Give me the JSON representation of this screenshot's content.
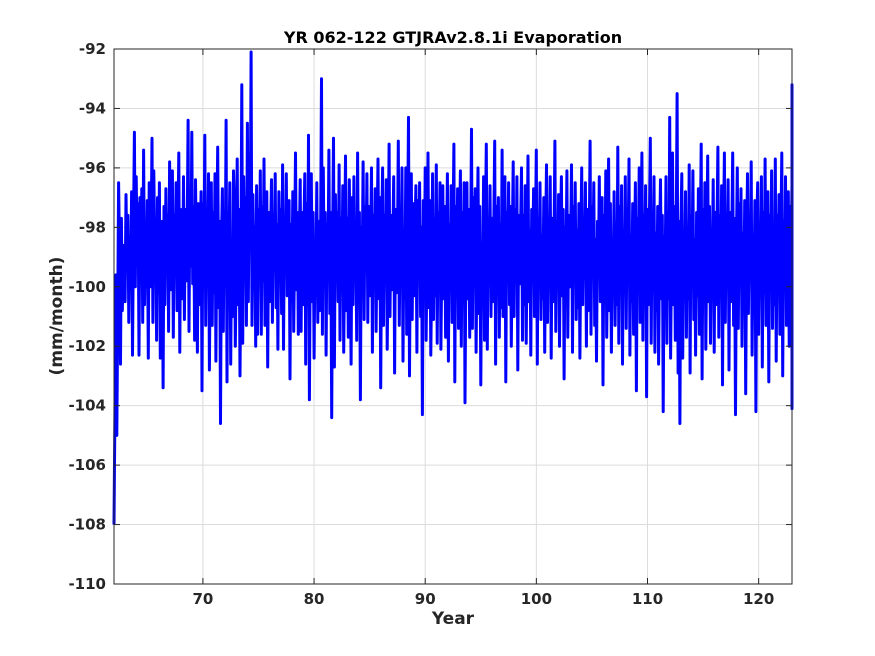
{
  "chart_data": {
    "type": "line",
    "title": "YR 062-122 GTJRAv2.8.1i Evaporation",
    "xlabel": "Year",
    "ylabel": "(mm/month)",
    "xlim": [
      62,
      123
    ],
    "ylim": [
      -110,
      -92
    ],
    "xticks": [
      70,
      80,
      90,
      100,
      110,
      120
    ],
    "xtick_labels": [
      "70",
      "80",
      "90",
      "100",
      "110",
      "120"
    ],
    "yticks": [
      -110,
      -108,
      -106,
      -104,
      -102,
      -100,
      -98,
      -96,
      -94,
      -92
    ],
    "ytick_labels": [
      "-110",
      "-108",
      "-106",
      "-104",
      "-102",
      "-100",
      "-98",
      "-96",
      "-94",
      "-92"
    ],
    "grid": true,
    "series": [
      {
        "color": "#0000ff",
        "x_start": 62.0,
        "x_step": 0.08333,
        "values": [
          -108.0,
          -104.3,
          -99.6,
          -105.0,
          -101.0,
          -96.5,
          -99.0,
          -102.6,
          -97.7,
          -100.8,
          -99.4,
          -98.6,
          -100.5,
          -96.9,
          -99.4,
          -97.6,
          -101.2,
          -98.3,
          -99.7,
          -96.8,
          -102.3,
          -98.0,
          -94.8,
          -100.0,
          -96.3,
          -99.0,
          -97.2,
          -102.3,
          -97.0,
          -99.6,
          -96.7,
          -101.2,
          -95.4,
          -100.6,
          -98.2,
          -99.7,
          -97.1,
          -102.4,
          -96.5,
          -100.0,
          -98.8,
          -95.0,
          -101.2,
          -96.1,
          -99.0,
          -98.0,
          -101.8,
          -97.0,
          -100.2,
          -96.5,
          -102.4,
          -99.0,
          -97.8,
          -103.4,
          -97.3,
          -100.6,
          -96.7,
          -99.2,
          -97.6,
          -101.5,
          -95.8,
          -100.1,
          -98.5,
          -96.1,
          -101.7,
          -97.6,
          -99.4,
          -96.5,
          -100.8,
          -98.1,
          -95.5,
          -102.2,
          -97.4,
          -99.5,
          -100.4,
          -96.3,
          -101.1,
          -97.4,
          -99.8,
          -98.0,
          -94.4,
          -101.5,
          -96.9,
          -99.3,
          -94.8,
          -99.9,
          -97.3,
          -101.8,
          -96.4,
          -99.0,
          -102.2,
          -97.2,
          -100.6,
          -98.8,
          -96.8,
          -103.5,
          -97.2,
          -100.0,
          -94.9,
          -101.3,
          -97.5,
          -99.6,
          -96.2,
          -102.8,
          -98.8,
          -96.5,
          -101.3,
          -97.5,
          -100.2,
          -96.2,
          -102.5,
          -98.1,
          -95.3,
          -100.7,
          -97.8,
          -104.6,
          -98.5,
          -96.7,
          -101.5,
          -97.5,
          -100.0,
          -94.4,
          -103.2,
          -97.5,
          -99.4,
          -96.5,
          -102.6,
          -98.5,
          -101.0,
          -96.1,
          -97.3,
          -102.0,
          -99.2,
          -95.7,
          -100.6,
          -97.4,
          -103.0,
          -98.8,
          -93.2,
          -101.9,
          -96.3,
          -99.2,
          -97.0,
          -101.3,
          -94.5,
          -100.5,
          -97.0,
          -98.3,
          -92.1,
          -101.3,
          -96.9,
          -99.5,
          -98.0,
          -102.0,
          -96.6,
          -101.6,
          -97.4,
          -99.2,
          -96.1,
          -101.6,
          -97.3,
          -99.8,
          -95.7,
          -101.3,
          -98.0,
          -96.8,
          -102.7,
          -97.5,
          -100.5,
          -98.5,
          -96.4,
          -101.2,
          -97.6,
          -99.3,
          -96.2,
          -100.7,
          -97.9,
          -102.1,
          -96.8,
          -99.3,
          -97.4,
          -100.9,
          -95.9,
          -102.1,
          -97.8,
          -99.5,
          -96.2,
          -100.3,
          -98.6,
          -97.1,
          -103.1,
          -97.9,
          -100.5,
          -96.8,
          -101.5,
          -98.8,
          -95.5,
          -100.1,
          -97.5,
          -101.6,
          -99.0,
          -96.4,
          -101.5,
          -97.5,
          -100.6,
          -98.0,
          -96.2,
          -102.6,
          -97.2,
          -100.6,
          -94.9,
          -103.8,
          -98.2,
          -96.2,
          -100.5,
          -97.5,
          -102.4,
          -98.6,
          -99.8,
          -96.5,
          -101.2,
          -97.8,
          -100.8,
          -98.8,
          -93.0,
          -101.6,
          -96.0,
          -99.7,
          -97.5,
          -102.3,
          -97.9,
          -99.3,
          -95.4,
          -100.9,
          -97.5,
          -104.4,
          -98.5,
          -95.0,
          -102.7,
          -96.9,
          -99.4,
          -97.5,
          -100.5,
          -95.9,
          -101.8,
          -97.7,
          -99.9,
          -96.6,
          -102.2,
          -99.0,
          -95.6,
          -100.8,
          -97.7,
          -101.7,
          -96.4,
          -99.2,
          -102.6,
          -97.0,
          -100.6,
          -96.3,
          -99.8,
          -98.1,
          -101.8,
          -95.5,
          -100.2,
          -97.5,
          -103.8,
          -98.0,
          -99.5,
          -95.8,
          -101.1,
          -97.3,
          -99.3,
          -96.2,
          -101.2,
          -97.3,
          -100.3,
          -98.7,
          -96.0,
          -102.2,
          -97.6,
          -99.6,
          -96.7,
          -101.5,
          -98.4,
          -95.7,
          -100.4,
          -97.0,
          -103.4,
          -98.0,
          -96.0,
          -101.3,
          -97.6,
          -99.8,
          -96.4,
          -102.1,
          -98.7,
          -95.2,
          -101.0,
          -97.6,
          -100.1,
          -98.5,
          -96.3,
          -102.9,
          -97.4,
          -100.2,
          -98.8,
          -95.1,
          -101.3,
          -97.6,
          -99.5,
          -96.0,
          -102.5,
          -98.3,
          -100.4,
          -96.0,
          -101.6,
          -98.0,
          -94.3,
          -103.0,
          -98.3,
          -96.2,
          -101.1,
          -97.2,
          -100.3,
          -98.2,
          -96.6,
          -102.2,
          -97.1,
          -99.7,
          -96.5,
          -101.0,
          -98.0,
          -104.3,
          -97.1,
          -100.2,
          -96.0,
          -101.8,
          -98.8,
          -95.5,
          -100.7,
          -97.1,
          -102.3,
          -99.5,
          -96.2,
          -101.1,
          -97.7,
          -100.3,
          -95.9,
          -101.9,
          -97.5,
          -99.1,
          -96.5,
          -102.1,
          -98.8,
          -96.6,
          -100.4,
          -97.3,
          -101.7,
          -99.0,
          -96.2,
          -102.5,
          -97.9,
          -100.1,
          -96.6,
          -101.2,
          -98.1,
          -95.2,
          -103.2,
          -97.3,
          -99.6,
          -96.7,
          -101.4,
          -98.4,
          -96.1,
          -102.0,
          -97.5,
          -99.9,
          -96.5,
          -103.9,
          -98.5,
          -96.5,
          -100.4,
          -97.4,
          -101.7,
          -98.6,
          -94.7,
          -101.4,
          -97.0,
          -99.6,
          -96.7,
          -102.2,
          -98.5,
          -96.0,
          -100.9,
          -97.3,
          -103.3,
          -98.6,
          -100.1,
          -96.3,
          -101.8,
          -98.0,
          -95.2,
          -102.1,
          -97.7,
          -99.7,
          -96.6,
          -101.0,
          -97.7,
          -100.5,
          -98.2,
          -95.1,
          -102.6,
          -97.3,
          -99.4,
          -97.0,
          -101.7,
          -97.9,
          -100.7,
          -95.4,
          -101.0,
          -98.3,
          -96.3,
          -103.2,
          -97.5,
          -99.2,
          -96.5,
          -100.6,
          -97.3,
          -102.0,
          -98.5,
          -95.8,
          -101.0,
          -97.4,
          -99.8,
          -96.3,
          -102.8,
          -97.6,
          -99.9,
          -98.0,
          -96.0,
          -101.8,
          -97.6,
          -100.6,
          -96.6,
          -101.9,
          -98.6,
          -95.6,
          -100.5,
          -98.1,
          -102.3,
          -97.4,
          -99.1,
          -96.7,
          -101.0,
          -98.5,
          -95.4,
          -102.6,
          -97.7,
          -99.6,
          -96.5,
          -101.1,
          -98.3,
          -100.4,
          -97.0,
          -102.2,
          -98.4,
          -95.9,
          -101.2,
          -97.8,
          -99.7,
          -96.3,
          -102.4,
          -97.7,
          -100.5,
          -98.8,
          -95.1,
          -101.5,
          -97.8,
          -99.8,
          -96.9,
          -102.0,
          -98.4,
          -96.3,
          -100.3,
          -97.4,
          -103.1,
          -98.0,
          -99.4,
          -96.1,
          -101.7,
          -97.6,
          -100.0,
          -98.7,
          -95.9,
          -102.2,
          -97.3,
          -99.6,
          -96.5,
          -101.1,
          -98.1,
          -100.7,
          -97.2,
          -102.4,
          -98.6,
          -96.0,
          -100.6,
          -97.7,
          -99.7,
          -96.5,
          -102.0,
          -97.4,
          -100.8,
          -98.8,
          -95.1,
          -101.6,
          -97.3,
          -99.4,
          -96.5,
          -101.3,
          -98.4,
          -102.5,
          -97.8,
          -99.6,
          -96.3,
          -100.5,
          -98.5,
          -97.0,
          -103.3,
          -97.6,
          -99.7,
          -96.1,
          -101.7,
          -98.4,
          -95.7,
          -100.8,
          -97.2,
          -102.2,
          -98.7,
          -99.9,
          -96.8,
          -101.3,
          -97.9,
          -100.6,
          -95.3,
          -101.9,
          -97.3,
          -99.5,
          -96.6,
          -102.6,
          -98.1,
          -100.2,
          -96.3,
          -101.4,
          -97.7,
          -99.1,
          -95.7,
          -102.3,
          -98.3,
          -100.5,
          -97.2,
          -101.6,
          -98.9,
          -96.5,
          -103.5,
          -97.7,
          -99.4,
          -96.0,
          -101.2,
          -98.1,
          -95.5,
          -101.8,
          -97.6,
          -99.7,
          -96.6,
          -103.7,
          -97.4,
          -100.6,
          -98.0,
          -95.0,
          -101.9,
          -97.7,
          -99.5,
          -96.3,
          -102.2,
          -98.2,
          -100.8,
          -97.3,
          -102.6,
          -98.8,
          -96.4,
          -100.4,
          -97.6,
          -104.2,
          -98.3,
          -99.6,
          -96.3,
          -101.9,
          -97.5,
          -100.4,
          -94.3,
          -102.4,
          -98.6,
          -95.5,
          -100.6,
          -97.3,
          -101.8,
          -98.3,
          -93.5,
          -102.9,
          -97.8,
          -104.6,
          -98.1,
          -96.2,
          -102.4,
          -98.5,
          -99.8,
          -96.8,
          -101.7,
          -98.0,
          -100.4,
          -95.9,
          -102.9,
          -97.6,
          -99.6,
          -96.1,
          -101.1,
          -98.4,
          -102.3,
          -97.5,
          -100.3,
          -96.7,
          -101.6,
          -98.2,
          -95.2,
          -103.1,
          -97.4,
          -99.9,
          -96.5,
          -102.1,
          -98.7,
          -95.6,
          -100.5,
          -97.3,
          -101.9,
          -98.5,
          -99.2,
          -96.4,
          -102.2,
          -97.5,
          -100.6,
          -98.0,
          -95.3,
          -101.7,
          -97.6,
          -100.3,
          -96.6,
          -103.3,
          -98.5,
          -95.5,
          -101.2,
          -97.8,
          -99.5,
          -96.4,
          -102.8,
          -97.5,
          -100.5,
          -98.2,
          -95.5,
          -101.3,
          -97.7,
          -104.3,
          -98.6,
          -96.0,
          -101.4,
          -97.2,
          -99.4,
          -96.7,
          -102.0,
          -98.2,
          -100.7,
          -97.1,
          -103.6,
          -98.6,
          -96.2,
          -100.9,
          -97.7,
          -99.5,
          -95.8,
          -102.3,
          -98.3,
          -100.1,
          -97.1,
          -104.2,
          -97.8,
          -96.5,
          -101.6,
          -98.0,
          -99.4,
          -96.3,
          -102.7,
          -97.5,
          -100.2,
          -95.7,
          -101.3,
          -98.3,
          -96.8,
          -103.2,
          -97.6,
          -99.9,
          -96.1,
          -101.4,
          -98.2,
          -100.6,
          -95.7,
          -102.5,
          -97.6,
          -99.4,
          -96.9,
          -101.6,
          -98.2,
          -95.5,
          -103.0,
          -97.8,
          -100.0,
          -96.3,
          -101.3,
          -98.5,
          -96.8,
          -102.0,
          -97.3,
          -99.4,
          -96.6,
          -102.3,
          -98.3,
          -95.6,
          -100.8,
          -97.6,
          -104.1,
          -98.3,
          -99.4,
          -96.5,
          -101.1,
          -97.7,
          -100.5,
          -95.9,
          -102.6,
          -98.2,
          -96.2,
          -101.2,
          -97.4,
          -99.9,
          -96.6,
          -102.4,
          -98.0,
          -100.7,
          -95.6,
          -101.6,
          -97.5,
          -99.4,
          -96.2,
          -103.1,
          -98.4,
          -100.3,
          -96.9,
          -102.0,
          -97.8,
          -95.3,
          -100.5,
          -97.4,
          -101.9,
          -98.6,
          -99.0,
          -96.6,
          -102.3,
          -97.7,
          -100.6,
          -97.0,
          -95.2,
          -101.5,
          -97.5,
          -99.7,
          -96.5,
          -102.8,
          -98.3,
          -100.1,
          -97.4,
          -95.0,
          -101.2,
          -98.1,
          -103.1,
          -97.5,
          -100.1,
          -96.2,
          -102.0,
          -98.5,
          -95.9,
          -100.6,
          -97.1,
          -101.8,
          -98.4,
          -99.4,
          -96.8,
          -102.4,
          -97.6,
          -94.9,
          -100.5,
          -97.8,
          -102.0,
          -98.0,
          -96.5,
          -101.4,
          -97.4,
          -100.2,
          -96.6,
          -103.0,
          -98.2,
          -95.6,
          -101.1,
          -97.6,
          -99.6,
          -96.2,
          -102.3,
          -97.9,
          -100.6,
          -93.6,
          -101.0,
          -97.5,
          -103.3,
          -98.3,
          -96.0,
          -101.6,
          -97.6,
          -99.4,
          -93.2,
          -102.5,
          -97.8,
          -100.8,
          -96.4,
          -101.4,
          -98.2,
          -103.9,
          -97.5,
          -99.5,
          -96.4,
          -102.0,
          -98.0,
          -100.1,
          -95.5,
          -101.2,
          -97.5,
          -99.6,
          -96.2,
          -102.5,
          -97.8,
          -100.8,
          -95.9,
          -101.5,
          -98.3,
          -95.0,
          -102.3
        ]
      }
    ]
  }
}
